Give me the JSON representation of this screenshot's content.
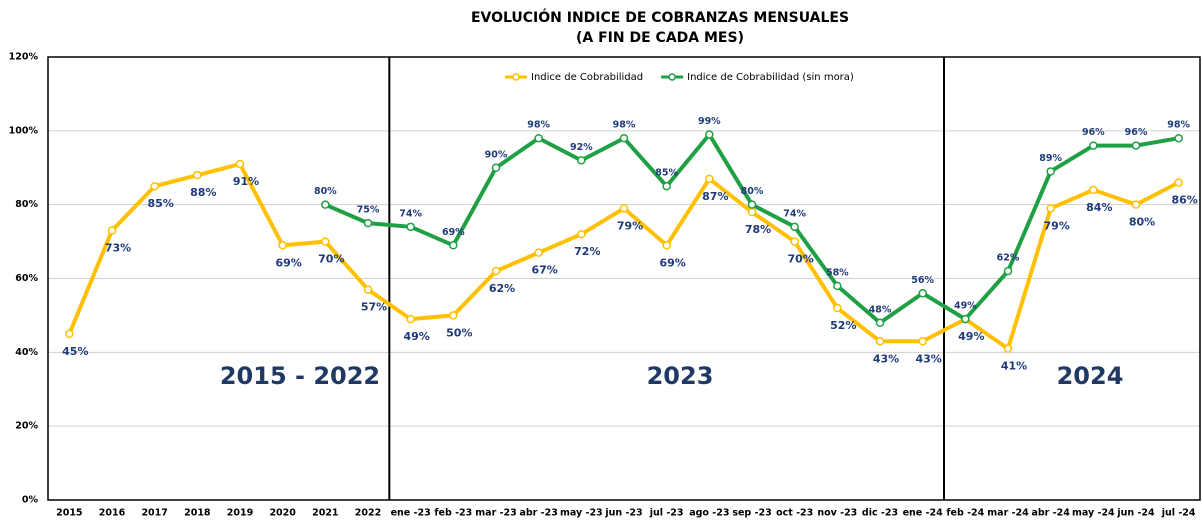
{
  "chart_data": {
    "type": "line",
    "title": "EVOLUCIÓN INDICE DE COBRANZAS MENSUALES",
    "subtitle": "(A FIN DE CADA MES)",
    "categories": [
      "2015",
      "2016",
      "2017",
      "2018",
      "2019",
      "2020",
      "2021",
      "2022",
      "ene -23",
      "feb -23",
      "mar -23",
      "abr -23",
      "may -23",
      "jun -23",
      "jul -23",
      "ago -23",
      "sep -23",
      "oct -23",
      "nov -23",
      "dic -23",
      "ene -24",
      "feb -24",
      "mar -24",
      "abr -24",
      "may -24",
      "jun -24",
      "jul -24"
    ],
    "series": [
      {
        "name": "Indice de Cobrabilidad",
        "color": "#ffc000",
        "values": [
          45,
          73,
          85,
          88,
          91,
          69,
          70,
          57,
          49,
          50,
          62,
          67,
          72,
          79,
          69,
          87,
          78,
          70,
          52,
          43,
          43,
          49,
          41,
          79,
          84,
          80,
          86
        ],
        "value_labels": [
          "45%",
          "73%",
          "85%",
          "88%",
          "91%",
          "69%",
          "70%",
          "57%",
          "49%",
          "50%",
          "62%",
          "67%",
          "72%",
          "79%",
          "69%",
          "87%",
          "78%",
          "70%",
          "52%",
          "43%",
          "43%",
          "49%",
          "41%",
          "79%",
          "84%",
          "80%",
          "86%"
        ]
      },
      {
        "name": "Indice de Cobrabilidad (sin mora)",
        "color": "#1fa045",
        "values": [
          null,
          null,
          null,
          null,
          null,
          null,
          80,
          75,
          74,
          69,
          90,
          98,
          92,
          98,
          85,
          99,
          80,
          74,
          58,
          48,
          56,
          49,
          62,
          89,
          96,
          96,
          98
        ],
        "value_labels": [
          null,
          null,
          null,
          null,
          null,
          null,
          "80%",
          "75%",
          "74%",
          "69%",
          "90%",
          "98%",
          "92%",
          "98%",
          "85%",
          "99%",
          "80%",
          "74%",
          "58%",
          "48%",
          "56%",
          "49%",
          "62%",
          "89%",
          "96%",
          "96%",
          "98%"
        ]
      }
    ],
    "ylim": [
      0,
      120
    ],
    "yticks": [
      {
        "value": 0,
        "label": "0%"
      },
      {
        "value": 20,
        "label": "20%"
      },
      {
        "value": 40,
        "label": "40%"
      },
      {
        "value": 60,
        "label": "60%"
      },
      {
        "value": 80,
        "label": "80%"
      },
      {
        "value": 100,
        "label": "100%"
      },
      {
        "value": 120,
        "label": "120%"
      }
    ],
    "grid": true,
    "legend": "top",
    "annotations": [
      "2015 - 2022",
      "2023",
      "2024"
    ]
  }
}
